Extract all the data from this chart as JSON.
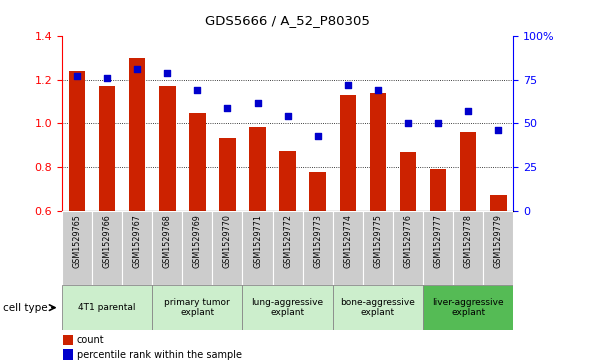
{
  "title": "GDS5666 / A_52_P80305",
  "samples": [
    "GSM1529765",
    "GSM1529766",
    "GSM1529767",
    "GSM1529768",
    "GSM1529769",
    "GSM1529770",
    "GSM1529771",
    "GSM1529772",
    "GSM1529773",
    "GSM1529774",
    "GSM1529775",
    "GSM1529776",
    "GSM1529777",
    "GSM1529778",
    "GSM1529779"
  ],
  "red_values": [
    1.24,
    1.17,
    1.3,
    1.17,
    1.05,
    0.935,
    0.985,
    0.875,
    0.775,
    1.13,
    1.14,
    0.87,
    0.79,
    0.96,
    0.67
  ],
  "blue_pct": [
    77,
    76,
    81,
    79,
    69,
    59,
    62,
    54,
    43,
    72,
    69,
    50,
    50,
    57,
    46
  ],
  "ylim_left": [
    0.6,
    1.4
  ],
  "ylim_right": [
    0,
    100
  ],
  "yticks_left": [
    0.6,
    0.8,
    1.0,
    1.2,
    1.4
  ],
  "yticks_right": [
    0,
    25,
    50,
    75,
    100
  ],
  "cell_groups": [
    {
      "label": "4T1 parental",
      "start": 0,
      "end": 3
    },
    {
      "label": "primary tumor\nexplant",
      "start": 3,
      "end": 6
    },
    {
      "label": "lung-aggressive\nexplant",
      "start": 6,
      "end": 9
    },
    {
      "label": "bone-aggressive\nexplant",
      "start": 9,
      "end": 12
    },
    {
      "label": "liver-aggressive\nexplant",
      "start": 12,
      "end": 15
    }
  ],
  "bar_color": "#cc2200",
  "dot_color": "#0000cc",
  "bar_width": 0.55,
  "legend_count_label": "count",
  "legend_pct_label": "percentile rank within the sample",
  "cell_type_label": "cell type",
  "group_light_color": "#cceecc",
  "group_dark_color": "#55bb55",
  "xtick_bg_color": "#cccccc"
}
